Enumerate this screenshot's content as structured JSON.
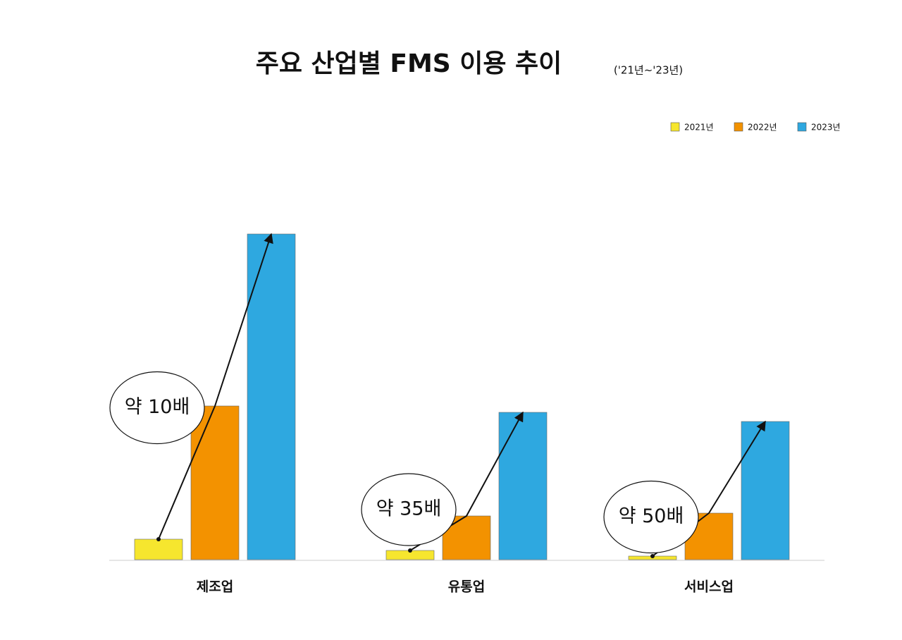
{
  "chart_data": {
    "type": "bar",
    "title": "주요 산업별 FMS 이용 추이",
    "subtitle": "('21년~'23년)",
    "categories": [
      "제조업",
      "유통업",
      "서비스업"
    ],
    "series": [
      {
        "name": "2021년",
        "color": "#f6e62e",
        "values": [
          29,
          13,
          5
        ]
      },
      {
        "name": "2022년",
        "color": "#f39200",
        "values": [
          218,
          62,
          66
        ]
      },
      {
        "name": "2023년",
        "color": "#2ea8e0",
        "values": [
          462,
          209,
          196
        ]
      }
    ],
    "annotations": [
      "약 10배",
      "약 35배",
      "약 50배"
    ]
  }
}
